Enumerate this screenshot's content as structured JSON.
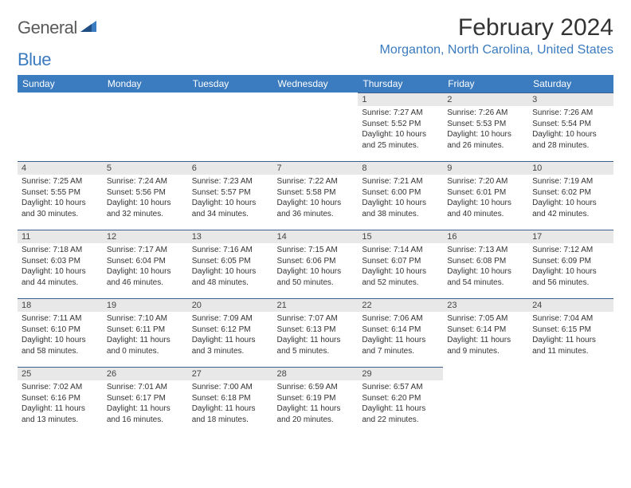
{
  "brand": {
    "text_gray": "General",
    "text_blue": "Blue"
  },
  "title": "February 2024",
  "location": "Morganton, North Carolina, United States",
  "day_headers": [
    "Sunday",
    "Monday",
    "Tuesday",
    "Wednesday",
    "Thursday",
    "Friday",
    "Saturday"
  ],
  "colors": {
    "header_bg": "#3b7bbf",
    "header_text": "#ffffff",
    "daynum_bg": "#e8e8e8",
    "border": "#3b5f8a",
    "logo_gray": "#5a5a5a",
    "logo_blue": "#3b7bbf",
    "location_color": "#3b7bbf",
    "body_text": "#333333"
  },
  "fonts": {
    "title_size_pt": 22,
    "location_size_pt": 12,
    "header_size_pt": 9,
    "body_size_pt": 7.5
  },
  "weeks": [
    [
      {
        "empty": true
      },
      {
        "empty": true
      },
      {
        "empty": true
      },
      {
        "empty": true
      },
      {
        "num": "1",
        "sunrise": "7:27 AM",
        "sunset": "5:52 PM",
        "daylight": "10 hours and 25 minutes."
      },
      {
        "num": "2",
        "sunrise": "7:26 AM",
        "sunset": "5:53 PM",
        "daylight": "10 hours and 26 minutes."
      },
      {
        "num": "3",
        "sunrise": "7:26 AM",
        "sunset": "5:54 PM",
        "daylight": "10 hours and 28 minutes."
      }
    ],
    [
      {
        "num": "4",
        "sunrise": "7:25 AM",
        "sunset": "5:55 PM",
        "daylight": "10 hours and 30 minutes."
      },
      {
        "num": "5",
        "sunrise": "7:24 AM",
        "sunset": "5:56 PM",
        "daylight": "10 hours and 32 minutes."
      },
      {
        "num": "6",
        "sunrise": "7:23 AM",
        "sunset": "5:57 PM",
        "daylight": "10 hours and 34 minutes."
      },
      {
        "num": "7",
        "sunrise": "7:22 AM",
        "sunset": "5:58 PM",
        "daylight": "10 hours and 36 minutes."
      },
      {
        "num": "8",
        "sunrise": "7:21 AM",
        "sunset": "6:00 PM",
        "daylight": "10 hours and 38 minutes."
      },
      {
        "num": "9",
        "sunrise": "7:20 AM",
        "sunset": "6:01 PM",
        "daylight": "10 hours and 40 minutes."
      },
      {
        "num": "10",
        "sunrise": "7:19 AM",
        "sunset": "6:02 PM",
        "daylight": "10 hours and 42 minutes."
      }
    ],
    [
      {
        "num": "11",
        "sunrise": "7:18 AM",
        "sunset": "6:03 PM",
        "daylight": "10 hours and 44 minutes."
      },
      {
        "num": "12",
        "sunrise": "7:17 AM",
        "sunset": "6:04 PM",
        "daylight": "10 hours and 46 minutes."
      },
      {
        "num": "13",
        "sunrise": "7:16 AM",
        "sunset": "6:05 PM",
        "daylight": "10 hours and 48 minutes."
      },
      {
        "num": "14",
        "sunrise": "7:15 AM",
        "sunset": "6:06 PM",
        "daylight": "10 hours and 50 minutes."
      },
      {
        "num": "15",
        "sunrise": "7:14 AM",
        "sunset": "6:07 PM",
        "daylight": "10 hours and 52 minutes."
      },
      {
        "num": "16",
        "sunrise": "7:13 AM",
        "sunset": "6:08 PM",
        "daylight": "10 hours and 54 minutes."
      },
      {
        "num": "17",
        "sunrise": "7:12 AM",
        "sunset": "6:09 PM",
        "daylight": "10 hours and 56 minutes."
      }
    ],
    [
      {
        "num": "18",
        "sunrise": "7:11 AM",
        "sunset": "6:10 PM",
        "daylight": "10 hours and 58 minutes."
      },
      {
        "num": "19",
        "sunrise": "7:10 AM",
        "sunset": "6:11 PM",
        "daylight": "11 hours and 0 minutes."
      },
      {
        "num": "20",
        "sunrise": "7:09 AM",
        "sunset": "6:12 PM",
        "daylight": "11 hours and 3 minutes."
      },
      {
        "num": "21",
        "sunrise": "7:07 AM",
        "sunset": "6:13 PM",
        "daylight": "11 hours and 5 minutes."
      },
      {
        "num": "22",
        "sunrise": "7:06 AM",
        "sunset": "6:14 PM",
        "daylight": "11 hours and 7 minutes."
      },
      {
        "num": "23",
        "sunrise": "7:05 AM",
        "sunset": "6:14 PM",
        "daylight": "11 hours and 9 minutes."
      },
      {
        "num": "24",
        "sunrise": "7:04 AM",
        "sunset": "6:15 PM",
        "daylight": "11 hours and 11 minutes."
      }
    ],
    [
      {
        "num": "25",
        "sunrise": "7:02 AM",
        "sunset": "6:16 PM",
        "daylight": "11 hours and 13 minutes."
      },
      {
        "num": "26",
        "sunrise": "7:01 AM",
        "sunset": "6:17 PM",
        "daylight": "11 hours and 16 minutes."
      },
      {
        "num": "27",
        "sunrise": "7:00 AM",
        "sunset": "6:18 PM",
        "daylight": "11 hours and 18 minutes."
      },
      {
        "num": "28",
        "sunrise": "6:59 AM",
        "sunset": "6:19 PM",
        "daylight": "11 hours and 20 minutes."
      },
      {
        "num": "29",
        "sunrise": "6:57 AM",
        "sunset": "6:20 PM",
        "daylight": "11 hours and 22 minutes."
      },
      {
        "empty": true
      },
      {
        "empty": true
      }
    ]
  ],
  "labels": {
    "sunrise_prefix": "Sunrise: ",
    "sunset_prefix": "Sunset: ",
    "daylight_prefix": "Daylight: "
  }
}
